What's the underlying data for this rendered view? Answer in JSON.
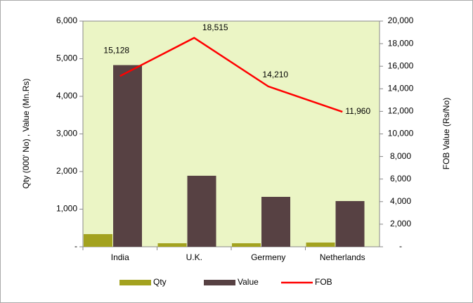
{
  "chart_data": {
    "type": "bar_line",
    "categories": [
      "India",
      "U.K.",
      "Germeny",
      "Netherlands"
    ],
    "series": [
      {
        "name": "Qty",
        "color": "#a3a21f",
        "values": [
          336,
          93,
          93,
          112
        ]
      },
      {
        "name": "Value",
        "color": "#574143",
        "values": [
          4830,
          1888,
          1327,
          1215
        ]
      },
      {
        "name": "FOB",
        "color": "#ff0000",
        "axis": "y2",
        "type": "line",
        "values": [
          15128,
          18515,
          14210,
          11960
        ],
        "value_labels": [
          "15,128",
          "18,515",
          "14,210",
          "11,960"
        ]
      }
    ],
    "y_label": "Qty  (000' No) , Value (Mn.Rs)",
    "y2_label": "FOB Value (Rs/No)",
    "ylim": [
      0,
      6000
    ],
    "yticks": [
      {
        "value": 0,
        "label": "-"
      },
      {
        "value": 1000,
        "label": "1,000"
      },
      {
        "value": 2000,
        "label": "2,000"
      },
      {
        "value": 3000,
        "label": "3,000"
      },
      {
        "value": 4000,
        "label": "4,000"
      },
      {
        "value": 5000,
        "label": "5,000"
      },
      {
        "value": 6000,
        "label": "6,000"
      }
    ],
    "y2lim": [
      0,
      20000
    ],
    "y2ticks": [
      {
        "value": 0,
        "label": "-"
      },
      {
        "value": 2000,
        "label": "2,000"
      },
      {
        "value": 4000,
        "label": "4,000"
      },
      {
        "value": 6000,
        "label": "6,000"
      },
      {
        "value": 8000,
        "label": "8,000"
      },
      {
        "value": 10000,
        "label": "10,000"
      },
      {
        "value": 12000,
        "label": "12,000"
      },
      {
        "value": 14000,
        "label": "14,000"
      },
      {
        "value": 16000,
        "label": "16,000"
      },
      {
        "value": 18000,
        "label": "18,000"
      },
      {
        "value": 20000,
        "label": "20,000"
      }
    ],
    "plot_background": "#ebf5c5",
    "grid": false,
    "legend": "bottom"
  }
}
